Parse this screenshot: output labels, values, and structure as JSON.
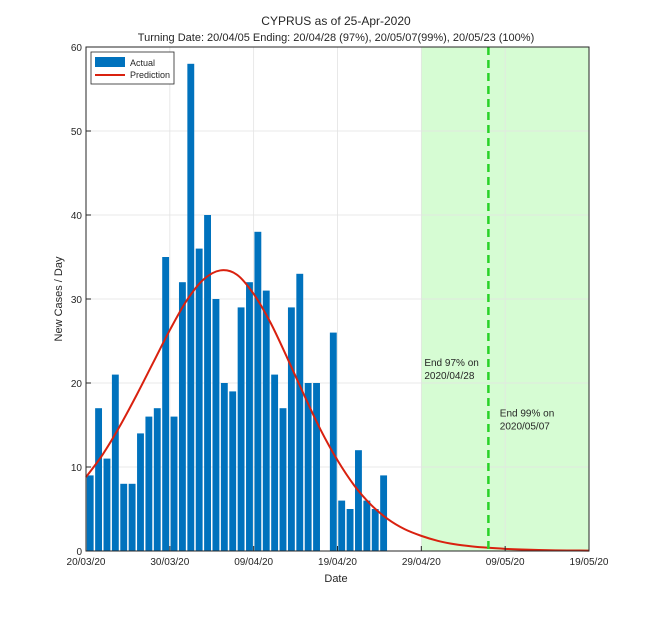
{
  "chart_data": {
    "type": "bar",
    "title": "CYPRUS as of 25-Apr-2020",
    "subtitle": "Turning Date: 20/04/05  Ending: 20/04/28 (97%), 20/05/07(99%), 20/05/23 (100%)",
    "xlabel": "Date",
    "ylabel": "New Cases / Day",
    "ylim": [
      0,
      60
    ],
    "yticks": [
      0,
      10,
      20,
      30,
      40,
      50,
      60
    ],
    "xlim": [
      "2020-03-20",
      "2020-05-19"
    ],
    "xtick_dates": [
      "2020-03-20",
      "2020-03-30",
      "2020-04-09",
      "2020-04-19",
      "2020-04-29",
      "2020-05-09",
      "2020-05-19"
    ],
    "xtick_labels": [
      "20/03/20",
      "30/03/20",
      "09/04/20",
      "19/04/20",
      "29/04/20",
      "09/05/20",
      "19/05/20"
    ],
    "grid": true,
    "legend_position": "top-left",
    "series": [
      {
        "name": "Actual",
        "kind": "bar",
        "color": "#0072BD",
        "dates": [
          "2020-03-20",
          "2020-03-21",
          "2020-03-22",
          "2020-03-23",
          "2020-03-24",
          "2020-03-25",
          "2020-03-26",
          "2020-03-27",
          "2020-03-28",
          "2020-03-29",
          "2020-03-30",
          "2020-03-31",
          "2020-04-01",
          "2020-04-02",
          "2020-04-03",
          "2020-04-04",
          "2020-04-05",
          "2020-04-06",
          "2020-04-07",
          "2020-04-08",
          "2020-04-09",
          "2020-04-10",
          "2020-04-11",
          "2020-04-12",
          "2020-04-13",
          "2020-04-14",
          "2020-04-15",
          "2020-04-16",
          "2020-04-17",
          "2020-04-18",
          "2020-04-19",
          "2020-04-20",
          "2020-04-21",
          "2020-04-22",
          "2020-04-23",
          "2020-04-24",
          "2020-04-25"
        ],
        "values": [
          9,
          17,
          11,
          21,
          8,
          8,
          14,
          16,
          17,
          35,
          16,
          32,
          58,
          36,
          40,
          30,
          20,
          19,
          29,
          32,
          38,
          31,
          21,
          17,
          29,
          33,
          20,
          20,
          0,
          26,
          6,
          5,
          12,
          6,
          5,
          9,
          0
        ]
      },
      {
        "name": "Prediction",
        "kind": "line",
        "color": "#D9210F",
        "dates": [
          "2020-03-20",
          "2020-03-22",
          "2020-03-24",
          "2020-03-26",
          "2020-03-28",
          "2020-03-30",
          "2020-04-01",
          "2020-04-03",
          "2020-04-05",
          "2020-04-07",
          "2020-04-09",
          "2020-04-11",
          "2020-04-13",
          "2020-04-15",
          "2020-04-17",
          "2020-04-19",
          "2020-04-21",
          "2020-04-23",
          "2020-04-25",
          "2020-04-27",
          "2020-04-29",
          "2020-05-01",
          "2020-05-03",
          "2020-05-05",
          "2020-05-07",
          "2020-05-09",
          "2020-05-11",
          "2020-05-13",
          "2020-05-15",
          "2020-05-17",
          "2020-05-19"
        ],
        "values": [
          8.8,
          11.5,
          14.8,
          18.5,
          22.4,
          26.3,
          29.8,
          32.3,
          33.4,
          32.9,
          30.6,
          27.2,
          23.0,
          18.6,
          14.4,
          10.8,
          7.8,
          5.5,
          3.8,
          2.6,
          1.8,
          1.2,
          0.8,
          0.55,
          0.38,
          0.26,
          0.18,
          0.12,
          0.08,
          0.06,
          0.04
        ]
      }
    ],
    "shaded_region": {
      "from": "2020-04-29",
      "to": "2020-05-19",
      "color": "#D6FCD3"
    },
    "vertical_marker": {
      "date": "2020-05-07",
      "color": "#28D228",
      "style": "dashed"
    },
    "annotations": [
      {
        "date": "2020-04-29",
        "y": 22,
        "lines": [
          "End 97% on",
          "2020/04/28"
        ]
      },
      {
        "date": "2020-05-08",
        "y": 16,
        "lines": [
          "End 99% on",
          "2020/05/07"
        ]
      }
    ]
  }
}
